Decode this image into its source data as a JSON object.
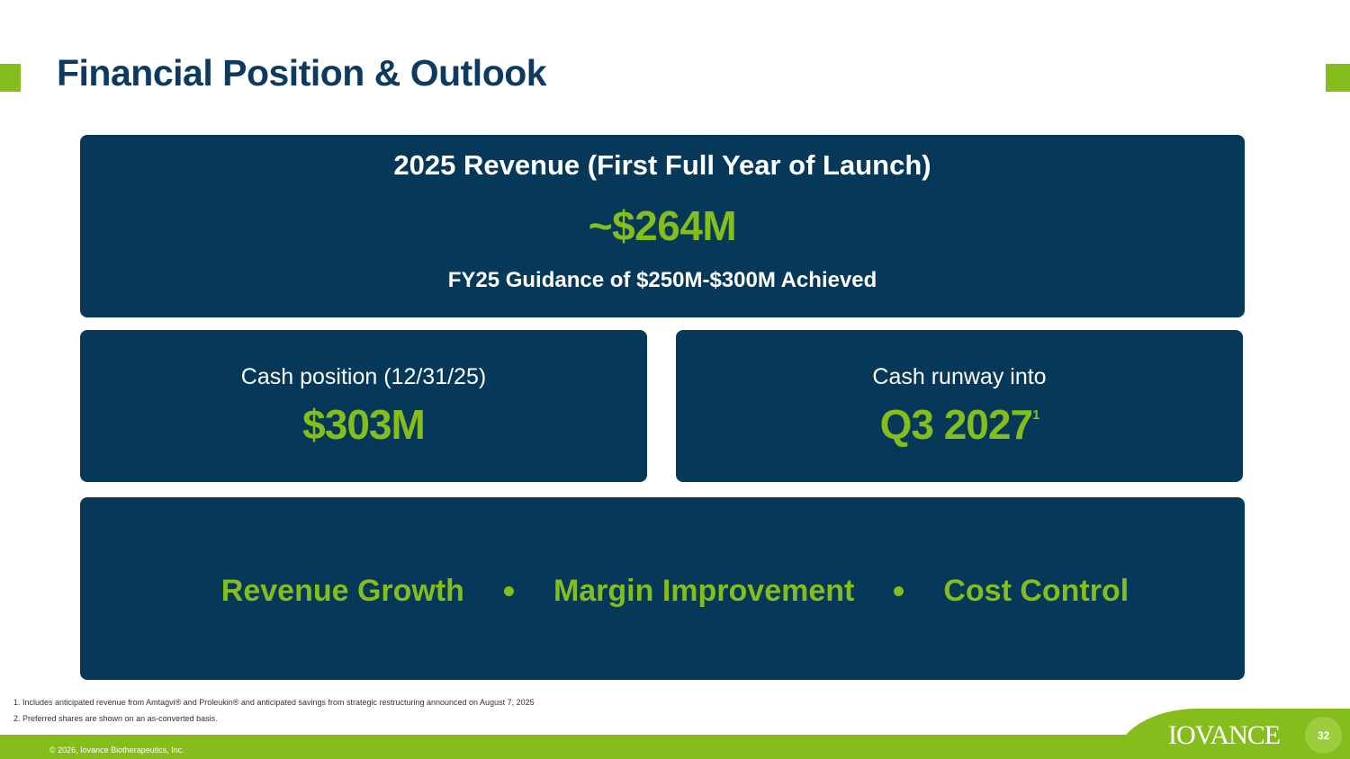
{
  "slide": {
    "title": "Financial Position & Outlook",
    "page_number": "32"
  },
  "revenue": {
    "heading": "2025 Revenue (First Full Year of Launch)",
    "value": "~$264M",
    "guidance": "FY25 Guidance of $250M-$300M Achieved"
  },
  "cash_position": {
    "label": "Cash position (12/31/25)",
    "value": "$303M"
  },
  "cash_runway": {
    "label": "Cash runway into",
    "value": "Q3 2027",
    "superscript": "1"
  },
  "pillars": [
    "Revenue Growth",
    "Margin Improvement",
    "Cost Control"
  ],
  "footnotes": [
    "1. Includes anticipated revenue from Amtagvi® and Proleukin® and anticipated savings from strategic restructuring announced on August 7, 2025",
    "2. Preferred shares are shown on an as-converted basis."
  ],
  "footer": {
    "copyright": "© 2026, Iovance Biotherapeutics, Inc.",
    "logo_text": "IOVANCE"
  },
  "colors": {
    "navy": "#053859",
    "green": "#84bd1c",
    "title": "#0d3a5e"
  }
}
